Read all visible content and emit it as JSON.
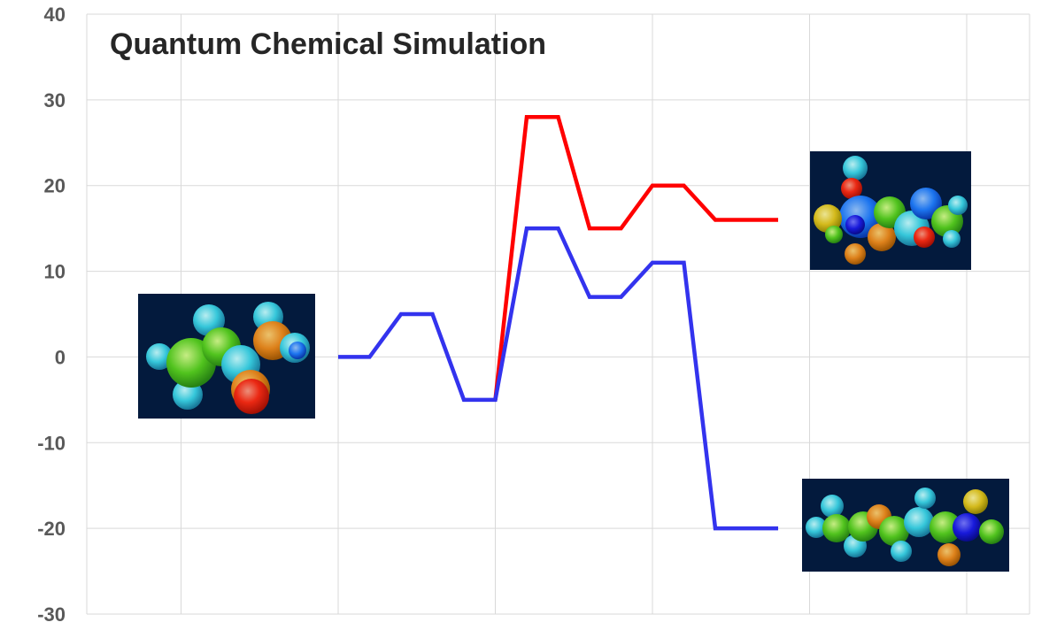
{
  "chart_data": {
    "type": "line",
    "title": "Quantum Chemical Simulation",
    "xlabel": "",
    "ylabel": "",
    "ylim": [
      -30,
      40
    ],
    "yticks": [
      40,
      30,
      20,
      10,
      0,
      -10,
      -20,
      -30
    ],
    "grid": true,
    "x": [
      0,
      0.2,
      0.4,
      0.6,
      0.8,
      1.0,
      1.2,
      1.4,
      1.6,
      1.8,
      2.0,
      2.2,
      2.4,
      2.6,
      2.8
    ],
    "xlim": [
      -1.6,
      4.4
    ],
    "series": [
      {
        "color": "#ff0000",
        "points": [
          [
            1.0,
            -5
          ],
          [
            1.2,
            28
          ],
          [
            1.4,
            28
          ],
          [
            1.6,
            15
          ],
          [
            1.8,
            15
          ],
          [
            2.0,
            20
          ],
          [
            2.2,
            20
          ],
          [
            2.4,
            16
          ],
          [
            2.8,
            16
          ]
        ]
      },
      {
        "color": "#3333ee",
        "points": [
          [
            0,
            0
          ],
          [
            0.2,
            0
          ],
          [
            0.4,
            5
          ],
          [
            0.6,
            5
          ],
          [
            0.8,
            -5
          ],
          [
            1.0,
            -5
          ],
          [
            1.2,
            15
          ],
          [
            1.4,
            15
          ],
          [
            1.6,
            7
          ],
          [
            1.8,
            7
          ],
          [
            2.0,
            11
          ],
          [
            2.2,
            11
          ],
          [
            2.4,
            -20
          ],
          [
            2.8,
            -20
          ]
        ]
      }
    ],
    "images": [
      {
        "name": "reactant-molecule-image"
      },
      {
        "name": "product-molecule-image-upper"
      },
      {
        "name": "product-molecule-image-lower"
      }
    ]
  },
  "colors": {
    "grid": "#d9d9d9",
    "image_bg": "#031a3d"
  }
}
